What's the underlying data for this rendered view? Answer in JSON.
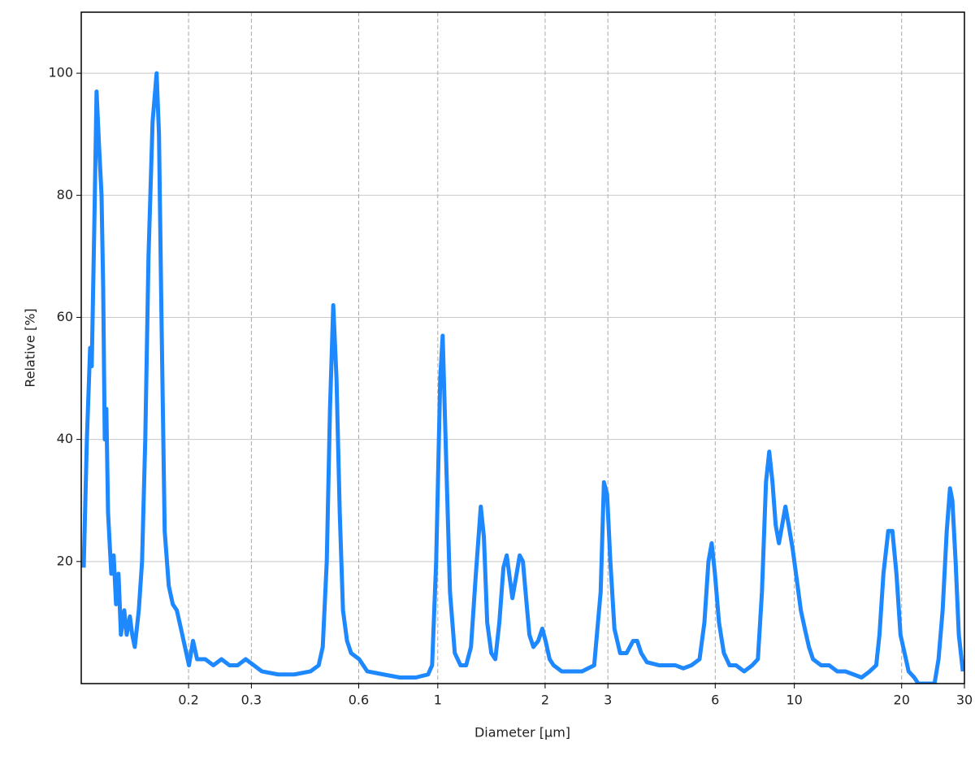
{
  "chart_data": {
    "type": "line",
    "x_label": "Diameter [µm]",
    "y_label": "Relative [%]",
    "xscale": "log",
    "xlim": [
      0.1,
      30
    ],
    "ylim": [
      0,
      110
    ],
    "xticks": [
      0.2,
      0.3,
      0.6,
      1,
      2,
      3,
      6,
      10,
      20,
      30
    ],
    "yticks": [
      20,
      40,
      60,
      80,
      100
    ],
    "grid": true,
    "color": "#1e88ff",
    "x": [
      0.1016,
      0.1037,
      0.1059,
      0.107,
      0.1088,
      0.1104,
      0.1122,
      0.114,
      0.1152,
      0.1164,
      0.1176,
      0.1189,
      0.1214,
      0.1233,
      0.1252,
      0.1272,
      0.1292,
      0.132,
      0.1341,
      0.1369,
      0.139,
      0.1413,
      0.145,
      0.1481,
      0.1512,
      0.1544,
      0.1585,
      0.1627,
      0.1652,
      0.1679,
      0.1714,
      0.176,
      0.1806,
      0.1854,
      0.1904,
      0.1954,
      0.2005,
      0.2058,
      0.2113,
      0.2227,
      0.2347,
      0.2473,
      0.2605,
      0.2745,
      0.2892,
      0.3049,
      0.3211,
      0.3566,
      0.396,
      0.4395,
      0.4634,
      0.4757,
      0.4882,
      0.4985,
      0.5091,
      0.5199,
      0.5309,
      0.5421,
      0.5565,
      0.5713,
      0.6018,
      0.6343,
      0.7042,
      0.782,
      0.8682,
      0.9391,
      0.964,
      0.9896,
      1.016,
      1.032,
      1.054,
      1.082,
      1.116,
      1.158,
      1.201,
      1.239,
      1.279,
      1.32,
      1.347,
      1.376,
      1.413,
      1.45,
      1.488,
      1.528,
      1.561,
      1.594,
      1.619,
      1.653,
      1.697,
      1.733,
      1.769,
      1.807,
      1.854,
      1.913,
      1.964,
      2.006,
      2.059,
      2.113,
      2.227,
      2.347,
      2.538,
      2.746,
      2.863,
      2.924,
      2.985,
      3.048,
      3.129,
      3.246,
      3.385,
      3.53,
      3.624,
      3.72,
      3.859,
      4.173,
      4.634,
      4.883,
      5.145,
      5.422,
      5.595,
      5.743,
      5.865,
      5.989,
      6.148,
      6.344,
      6.58,
      6.862,
      7.231,
      7.619,
      7.903,
      8.113,
      8.328,
      8.504,
      8.684,
      8.865,
      9.054,
      9.246,
      9.441,
      9.641,
      9.896,
      10.16,
      10.43,
      10.7,
      10.99,
      11.28,
      11.89,
      12.52,
      13.2,
      13.91,
      14.66,
      15.44,
      16.27,
      16.97,
      17.33,
      17.78,
      18.34,
      18.84,
      19.34,
      19.85,
      20.38,
      20.92,
      21.7,
      22.27,
      24.73,
      25.38,
      26.06,
      26.76,
      27.33,
      27.75,
      28.34,
      28.93,
      29.7
    ],
    "values": [
      19,
      40,
      55,
      52,
      75,
      97,
      88,
      80,
      65,
      40,
      45,
      28,
      18,
      21,
      13,
      18,
      8,
      12,
      8,
      11,
      8,
      6,
      12,
      20,
      40,
      70,
      92,
      100,
      90,
      60,
      25,
      16,
      13,
      12,
      9,
      6,
      3,
      7,
      4,
      4,
      3,
      4,
      3,
      3,
      4,
      3,
      2,
      1.5,
      1.5,
      2,
      3,
      6,
      20,
      45,
      62,
      50,
      28,
      12,
      7,
      5,
      4,
      2,
      1.5,
      1,
      1,
      1.5,
      3,
      20,
      50,
      57,
      38,
      15,
      5,
      3,
      3,
      6,
      18,
      29,
      24,
      10,
      5,
      4,
      10,
      19,
      21,
      17,
      14,
      17,
      21,
      20,
      14,
      8,
      6,
      7,
      9,
      7,
      4,
      3,
      2,
      2,
      2,
      3,
      15,
      33,
      31,
      20,
      9,
      5,
      5,
      7,
      7,
      5,
      3.5,
      3,
      3,
      2.5,
      3,
      4,
      10,
      20,
      23,
      18,
      10,
      5,
      3,
      3,
      2,
      3,
      4,
      15,
      33,
      38,
      33,
      26,
      23,
      26,
      29,
      26,
      22,
      17,
      12,
      9,
      6,
      4,
      3,
      3,
      2,
      2,
      1.5,
      1,
      2,
      3,
      8,
      18,
      25,
      25,
      18,
      8,
      5,
      2,
      1,
      0,
      0,
      4,
      12,
      25,
      32,
      30,
      20,
      8,
      2
    ]
  }
}
